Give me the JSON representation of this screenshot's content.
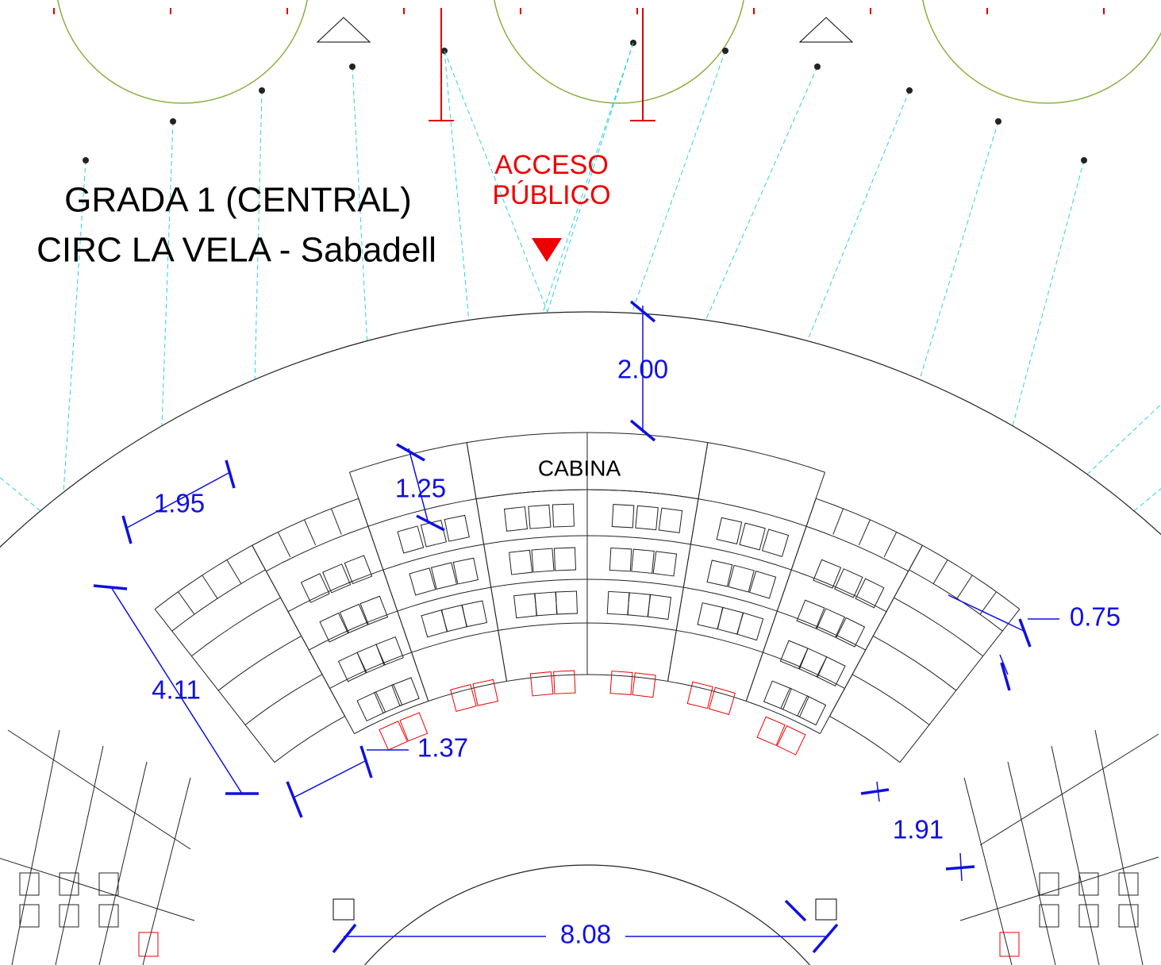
{
  "title": {
    "line1": "GRADA 1 (CENTRAL)",
    "line2": "CIRC LA VELA - Sabadell"
  },
  "access": {
    "line1": "ACCESO",
    "line2": "PÚBLICO"
  },
  "booth": "CABINA",
  "dimensions": [
    "2.00",
    "1.25",
    "1.95",
    "4.11",
    "1.37",
    "0.75",
    "1.91",
    "8.08"
  ]
}
